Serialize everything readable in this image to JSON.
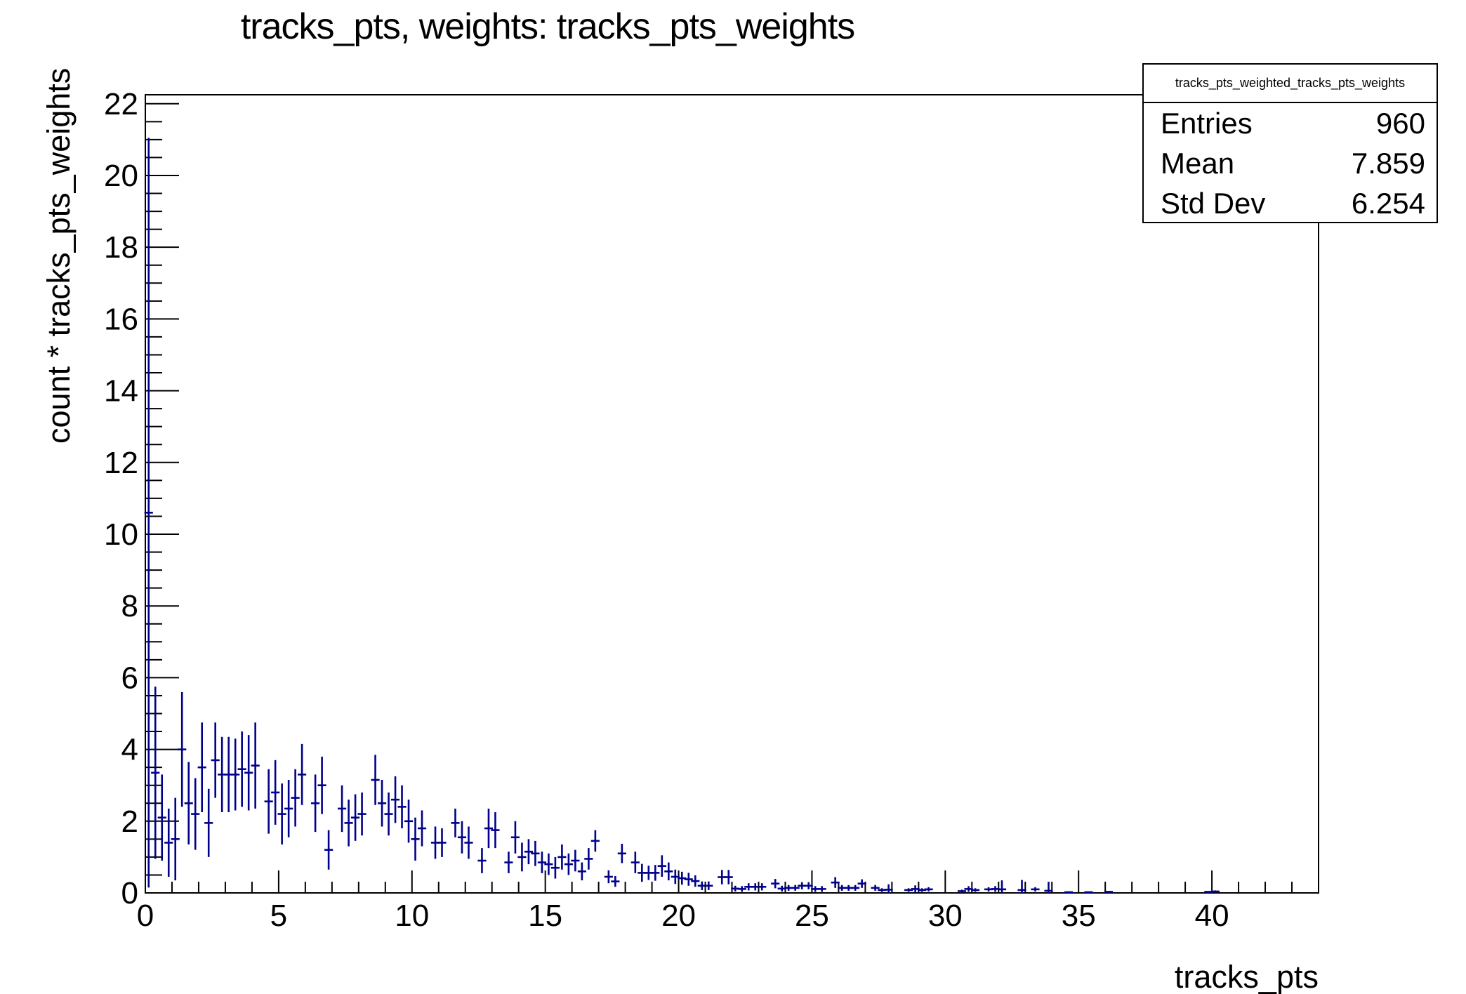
{
  "page": {
    "background": "#ffffff",
    "text_color": "#000000"
  },
  "chart_data": {
    "type": "scatter",
    "subtype": "weighted-histogram-with-error-bars",
    "title": "tracks_pts, weights: tracks_pts_weights",
    "xlabel": "tracks_pts",
    "ylabel": "count * tracks_pts_weights",
    "xlim": [
      0,
      44
    ],
    "ylim": [
      0,
      22.25
    ],
    "x_major_ticks": [
      0,
      5,
      10,
      15,
      20,
      25,
      30,
      35,
      40
    ],
    "x_minor_step": 1,
    "y_major_ticks": [
      0,
      2,
      4,
      6,
      8,
      10,
      12,
      14,
      16,
      18,
      20,
      22
    ],
    "y_minor_step": 0.5,
    "grid": false,
    "legend": null,
    "bin_width": 0.25,
    "marker_color": "#00008b",
    "axis_color": "#000000",
    "points_format": "[x, y, yerr]",
    "points": [
      [
        0.125,
        10.6,
        10.45
      ],
      [
        0.375,
        3.35,
        2.4
      ],
      [
        0.625,
        2.1,
        1.2
      ],
      [
        0.875,
        1.4,
        0.95
      ],
      [
        1.125,
        1.5,
        1.15
      ],
      [
        1.375,
        4.0,
        1.6
      ],
      [
        1.625,
        2.5,
        1.15
      ],
      [
        1.875,
        2.2,
        1.0
      ],
      [
        2.125,
        3.5,
        1.25
      ],
      [
        2.375,
        1.95,
        0.95
      ],
      [
        2.625,
        3.7,
        1.05
      ],
      [
        2.875,
        3.3,
        1.05
      ],
      [
        3.125,
        3.3,
        1.05
      ],
      [
        3.375,
        3.3,
        1.0
      ],
      [
        3.625,
        3.45,
        1.05
      ],
      [
        3.875,
        3.35,
        1.05
      ],
      [
        4.125,
        3.55,
        1.2
      ],
      [
        4.625,
        2.55,
        0.9
      ],
      [
        4.875,
        2.8,
        0.9
      ],
      [
        5.125,
        2.2,
        0.85
      ],
      [
        5.375,
        2.35,
        0.8
      ],
      [
        5.625,
        2.65,
        0.8
      ],
      [
        5.875,
        3.3,
        0.85
      ],
      [
        6.375,
        2.5,
        0.8
      ],
      [
        6.625,
        3.0,
        0.8
      ],
      [
        6.875,
        1.2,
        0.55
      ],
      [
        7.375,
        2.35,
        0.65
      ],
      [
        7.625,
        1.95,
        0.65
      ],
      [
        7.875,
        2.1,
        0.65
      ],
      [
        8.125,
        2.2,
        0.6
      ],
      [
        8.625,
        3.15,
        0.7
      ],
      [
        8.875,
        2.5,
        0.65
      ],
      [
        9.125,
        2.2,
        0.6
      ],
      [
        9.375,
        2.6,
        0.65
      ],
      [
        9.625,
        2.4,
        0.6
      ],
      [
        9.875,
        2.0,
        0.6
      ],
      [
        10.125,
        1.5,
        0.6
      ],
      [
        10.375,
        1.8,
        0.5
      ],
      [
        10.875,
        1.4,
        0.45
      ],
      [
        11.125,
        1.4,
        0.4
      ],
      [
        11.625,
        1.95,
        0.4
      ],
      [
        11.875,
        1.55,
        0.45
      ],
      [
        12.125,
        1.4,
        0.45
      ],
      [
        12.625,
        0.9,
        0.35
      ],
      [
        12.875,
        1.8,
        0.55
      ],
      [
        13.125,
        1.75,
        0.5
      ],
      [
        13.625,
        0.85,
        0.3
      ],
      [
        13.875,
        1.55,
        0.45
      ],
      [
        14.125,
        1.0,
        0.4
      ],
      [
        14.375,
        1.15,
        0.35
      ],
      [
        14.625,
        1.1,
        0.35
      ],
      [
        14.875,
        0.85,
        0.3
      ],
      [
        15.125,
        0.8,
        0.3
      ],
      [
        15.375,
        0.7,
        0.3
      ],
      [
        15.625,
        1.0,
        0.35
      ],
      [
        15.875,
        0.8,
        0.3
      ],
      [
        16.125,
        0.9,
        0.3
      ],
      [
        16.375,
        0.6,
        0.25
      ],
      [
        16.625,
        0.95,
        0.3
      ],
      [
        16.875,
        1.45,
        0.3
      ],
      [
        17.375,
        0.45,
        0.18
      ],
      [
        17.625,
        0.32,
        0.15
      ],
      [
        17.875,
        1.1,
        0.27
      ],
      [
        18.375,
        0.85,
        0.3
      ],
      [
        18.625,
        0.56,
        0.25
      ],
      [
        18.875,
        0.56,
        0.2
      ],
      [
        19.125,
        0.56,
        0.22
      ],
      [
        19.375,
        0.75,
        0.3
      ],
      [
        19.625,
        0.6,
        0.25
      ],
      [
        19.875,
        0.45,
        0.2
      ],
      [
        20.125,
        0.41,
        0.18
      ],
      [
        20.375,
        0.38,
        0.18
      ],
      [
        20.625,
        0.33,
        0.16
      ],
      [
        20.875,
        0.2,
        0.12
      ],
      [
        21.125,
        0.2,
        0.12
      ],
      [
        21.625,
        0.44,
        0.2
      ],
      [
        21.875,
        0.44,
        0.2
      ],
      [
        22.125,
        0.12,
        0.08
      ],
      [
        22.375,
        0.11,
        0.08
      ],
      [
        22.625,
        0.17,
        0.1
      ],
      [
        22.875,
        0.17,
        0.1
      ],
      [
        23.125,
        0.17,
        0.1
      ],
      [
        23.625,
        0.26,
        0.13
      ],
      [
        23.875,
        0.12,
        0.08
      ],
      [
        24.125,
        0.14,
        0.08
      ],
      [
        24.375,
        0.14,
        0.08
      ],
      [
        24.625,
        0.2,
        0.1
      ],
      [
        24.875,
        0.2,
        0.1
      ],
      [
        25.125,
        0.11,
        0.08
      ],
      [
        25.375,
        0.11,
        0.08
      ],
      [
        25.875,
        0.29,
        0.15
      ],
      [
        26.125,
        0.14,
        0.08
      ],
      [
        26.375,
        0.14,
        0.08
      ],
      [
        26.625,
        0.14,
        0.08
      ],
      [
        26.875,
        0.26,
        0.12
      ],
      [
        27.375,
        0.14,
        0.08
      ],
      [
        27.625,
        0.08,
        0.05
      ],
      [
        27.875,
        0.09,
        0.15
      ],
      [
        28.625,
        0.08,
        0.05
      ],
      [
        28.875,
        0.11,
        0.1
      ],
      [
        29.125,
        0.08,
        0.05
      ],
      [
        29.375,
        0.1,
        0.06
      ],
      [
        30.625,
        0.05,
        0.04
      ],
      [
        30.875,
        0.11,
        0.08
      ],
      [
        31.125,
        0.08,
        0.05
      ],
      [
        31.625,
        0.1,
        0.06
      ],
      [
        31.875,
        0.11,
        0.08
      ],
      [
        32.125,
        0.1,
        0.25
      ],
      [
        32.875,
        0.08,
        0.28
      ],
      [
        33.375,
        0.1,
        0.06
      ],
      [
        33.875,
        0.06,
        0.25
      ],
      [
        34.625,
        0.02,
        0.02
      ],
      [
        35.375,
        0.02,
        0.02
      ],
      [
        36.125,
        0.03,
        0.02
      ],
      [
        39.875,
        0.03,
        0.02
      ],
      [
        40.125,
        0.04,
        0.03
      ]
    ]
  },
  "stats_box": {
    "title": "tracks_pts_weighted_tracks_pts_weights",
    "rows": [
      {
        "label": "Entries",
        "value": "960"
      },
      {
        "label": "Mean",
        "value": "7.859"
      },
      {
        "label": "Std Dev",
        "value": "6.254"
      }
    ]
  }
}
